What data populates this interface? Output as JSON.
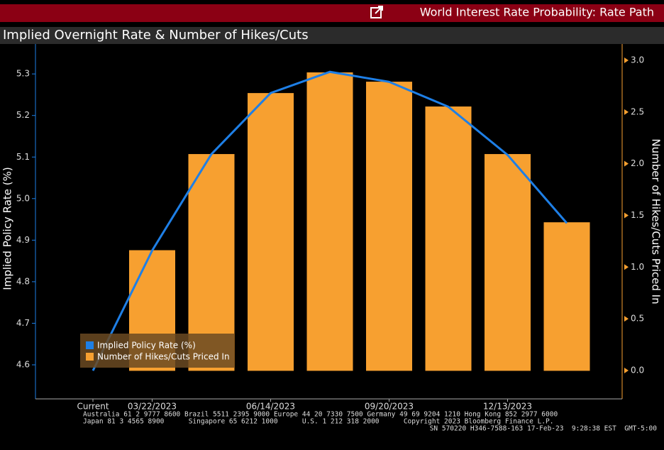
{
  "header": {
    "title": "World Interest Rate Probability: Rate Path",
    "subtitle": "Implied Overnight Rate & Number of Hikes/Cuts"
  },
  "chart_data": {
    "type": "combo",
    "categories": [
      "Current",
      "03/22/2023",
      null,
      "06/14/2023",
      null,
      "09/20/2023",
      null,
      "12/13/2023",
      null
    ],
    "series": [
      {
        "name": "Implied Policy Rate (%)",
        "type": "line",
        "color": "#1e7fe6",
        "values": [
          4.586,
          4.875,
          5.107,
          5.254,
          5.305,
          5.281,
          5.221,
          5.105,
          4.941
        ]
      },
      {
        "name": "Number of Hikes/Cuts Priced In",
        "type": "bar",
        "axis": "y2",
        "color": "#f7a030",
        "values": [
          0,
          1.16,
          2.09,
          2.68,
          2.88,
          2.79,
          2.55,
          2.09,
          1.43
        ]
      }
    ],
    "ylabel": "Implied Policy Rate (%)",
    "y2label": "Number of Hikes/Cuts Priced In",
    "ylim": [
      4.518,
      5.372
    ],
    "yticks": [
      4.6,
      4.7,
      4.8,
      4.9,
      {
        "value": 5,
        "label": "5.0"
      },
      5.1,
      5.2,
      5.3
    ],
    "y2lim": [
      -0.275,
      3.158
    ],
    "y2ticks": [
      {
        "value": 0,
        "label": "0.0"
      },
      0.5,
      {
        "value": 1,
        "label": "1.0"
      },
      1.5,
      {
        "value": 2,
        "label": "2.0"
      },
      2.5,
      {
        "value": 3,
        "label": "3.0"
      }
    ],
    "legend": "bottom-left"
  },
  "footer": {
    "lines": [
      "Australia 61 2 9777 8600 Brazil 5511 2395 9000 Europe 44 20 7330 7500 Germany 49 69 9204 1210 Hong Kong 852 2977 6000",
      "Japan 81 3 4565 8900      Singapore 65 6212 1000      U.S. 1 212 318 2000      Copyright 2023 Bloomberg Finance L.P.",
      "SN 570220 H346-7588-163 17-Feb-23  9:28:38 EST  GMT-5:00"
    ]
  }
}
